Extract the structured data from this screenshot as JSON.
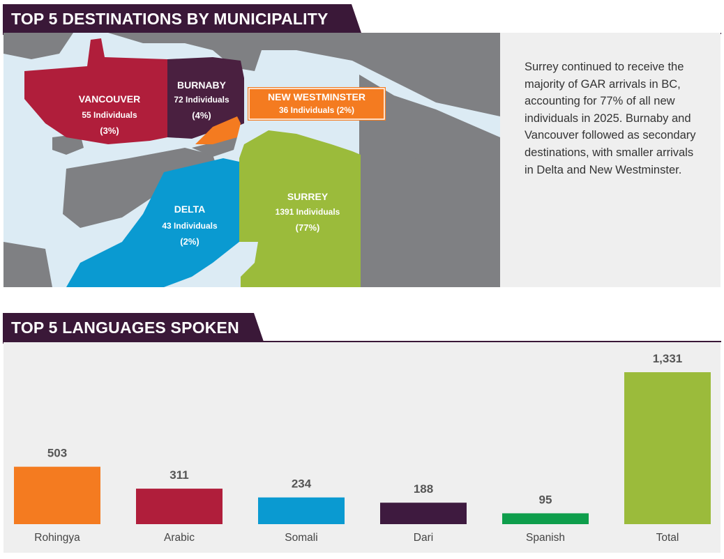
{
  "section1": {
    "title": "TOP 5 DESTINATIONS BY MUNICIPALITY",
    "regions": [
      {
        "name": "VANCOUVER",
        "individuals": "55 Individuals",
        "pct": "(3%)",
        "color": "#b01e3b"
      },
      {
        "name": "BURNABY",
        "individuals": "72 Individuals",
        "pct": "(4%)",
        "color": "#4a2040"
      },
      {
        "name": "NEW WESTMINSTER",
        "individuals": "36 Individuals (2%)",
        "color": "#f47b20"
      },
      {
        "name": "DELTA",
        "individuals": "43 Individuals",
        "pct": "(2%)",
        "color": "#0a9ad1"
      },
      {
        "name": "SURREY",
        "individuals": "1391 Individuals",
        "pct": "(77%)",
        "color": "#9bbb3b"
      }
    ],
    "description": "Surrey continued to receive the majority of GAR arrivals in BC, accounting for 77% of all new individuals in 2025. Burnaby and Vancouver followed as secondary destinations, with smaller arrivals in Delta and New Westminster."
  },
  "section2": {
    "title": "TOP 5 LANGUAGES SPOKEN"
  },
  "colors": {
    "banner": "#3a1838",
    "water": "#dcebf4",
    "land": "#7f8083",
    "panel": "#efefef"
  },
  "chart_data": {
    "type": "bar",
    "title": "TOP 5 LANGUAGES SPOKEN",
    "categories": [
      "Rohingya",
      "Arabic",
      "Somali",
      "Dari",
      "Spanish",
      "Total"
    ],
    "values": [
      503,
      311,
      234,
      188,
      95,
      1331
    ],
    "value_labels": [
      "503",
      "311",
      "234",
      "188",
      "95",
      "1,331"
    ],
    "colors": [
      "#f47b20",
      "#b01e3b",
      "#0a9ad1",
      "#3e1a3f",
      "#0e9e4c",
      "#9bbb3b"
    ],
    "ylim": [
      0,
      1331
    ],
    "grid": false,
    "legend": "none"
  }
}
